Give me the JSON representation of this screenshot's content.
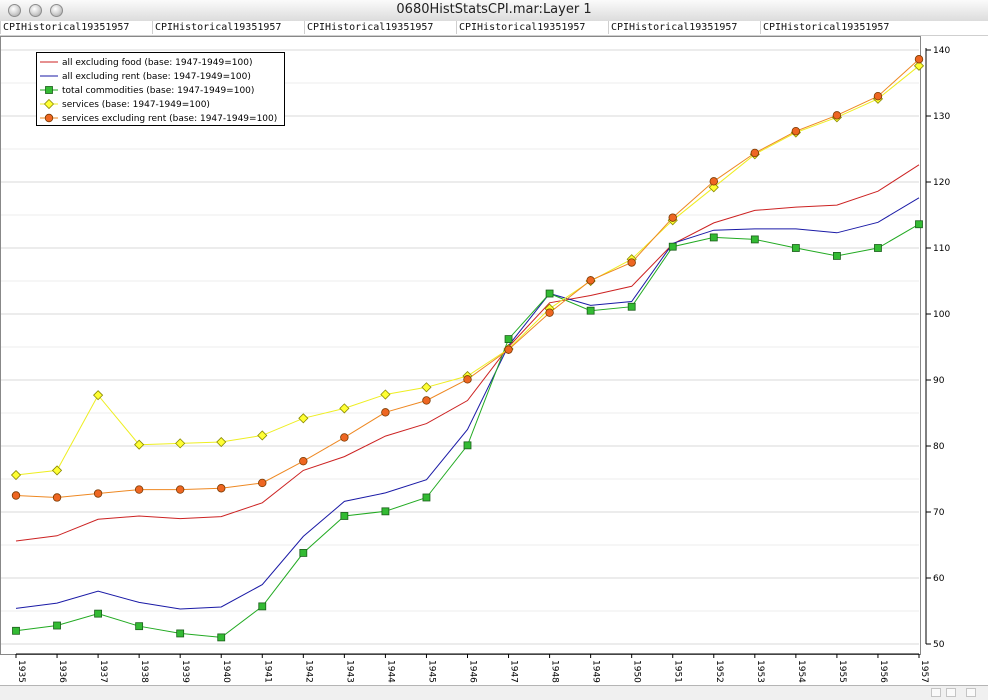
{
  "window": {
    "title": "0680HistStatsCPI.mar:Layer 1"
  },
  "tabs": [
    "CPIHistorical19351957",
    "CPIHistorical19351957",
    "CPIHistorical19351957",
    "CPIHistorical19351957",
    "CPIHistorical19351957",
    "CPIHistorical19351957"
  ],
  "chart_data": {
    "type": "line",
    "title": "",
    "xlabel": "",
    "ylabel": "",
    "x": [
      1935,
      1936,
      1937,
      1938,
      1939,
      1940,
      1941,
      1942,
      1943,
      1944,
      1945,
      1946,
      1947,
      1948,
      1949,
      1950,
      1951,
      1952,
      1953,
      1954,
      1955,
      1956,
      1957
    ],
    "xlim": [
      1935,
      1957
    ],
    "ylim": [
      50,
      140
    ],
    "yticks": [
      50,
      60,
      70,
      80,
      90,
      100,
      110,
      120,
      130,
      140
    ],
    "yaxis_position": "right",
    "grid": "horizontal",
    "legend_position": "top-left",
    "series": [
      {
        "name": "all excluding food (base: 1947-1949=100)",
        "color": "#cc2222",
        "marker": "none",
        "values": [
          65.6,
          66.4,
          68.9,
          69.4,
          69.0,
          69.3,
          71.4,
          76.3,
          78.4,
          81.5,
          83.4,
          86.9,
          95.0,
          101.7,
          102.8,
          104.2,
          110.6,
          113.8,
          115.7,
          116.2,
          116.5,
          118.6,
          122.6
        ]
      },
      {
        "name": "all excluding rent (base: 1947-1949=100)",
        "color": "#1a1aa6",
        "marker": "none",
        "values": [
          55.4,
          56.2,
          58.0,
          56.3,
          55.3,
          55.6,
          59.0,
          66.3,
          71.6,
          72.9,
          74.9,
          82.5,
          95.2,
          103.1,
          101.3,
          101.9,
          110.7,
          112.7,
          112.9,
          112.9,
          112.3,
          113.9,
          117.6
        ]
      },
      {
        "name": "total commodities (base: 1947-1949=100)",
        "color": "#22aa22",
        "markerFill": "#33bb33",
        "marker": "square",
        "values": [
          52.0,
          52.8,
          54.6,
          52.7,
          51.6,
          51.0,
          55.7,
          63.8,
          69.4,
          70.1,
          72.2,
          80.1,
          96.2,
          103.1,
          100.5,
          101.1,
          110.2,
          111.6,
          111.3,
          110.0,
          108.8,
          110.0,
          113.6
        ]
      },
      {
        "name": "services (base: 1947-1949=100)",
        "color": "#eeee22",
        "markerFill": "#ffff33",
        "marker": "diamond",
        "values": [
          75.6,
          76.3,
          87.7,
          80.2,
          80.4,
          80.6,
          81.6,
          84.2,
          85.7,
          87.8,
          88.9,
          90.6,
          94.7,
          100.8,
          105.0,
          108.3,
          114.2,
          119.2,
          124.2,
          127.5,
          129.8,
          132.6,
          137.6
        ]
      },
      {
        "name": "services excluding rent (base: 1947-1949=100)",
        "color": "#ee8822",
        "markerFill": "#ee6622",
        "marker": "circle",
        "values": [
          72.5,
          72.2,
          72.8,
          73.4,
          73.4,
          73.6,
          74.4,
          77.7,
          81.3,
          85.1,
          86.9,
          90.1,
          94.6,
          100.2,
          105.1,
          107.8,
          114.6,
          120.1,
          124.4,
          127.7,
          130.1,
          133.0,
          138.6
        ]
      }
    ]
  }
}
